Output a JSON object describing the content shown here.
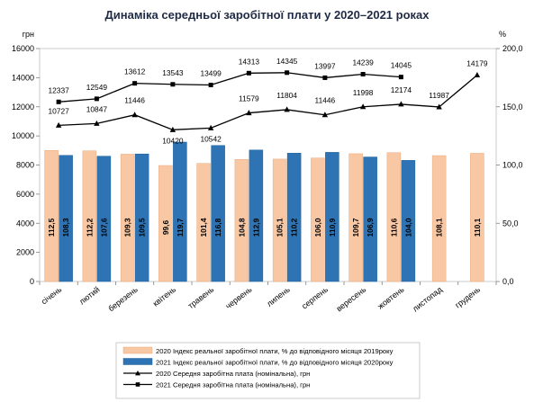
{
  "chart_data": {
    "type": "bar+line",
    "title": "Динаміка середньої заробітної плати у 2020–2021 роках",
    "left_axis": {
      "unit": "грн",
      "min": 0,
      "max": 16000,
      "step": 2000,
      "ticks": [
        "0",
        "2000",
        "4000",
        "6000",
        "8000",
        "10000",
        "12000",
        "14000",
        "16000"
      ]
    },
    "right_axis": {
      "unit": "%",
      "min": 0,
      "max": 200,
      "step": 50,
      "ticks": [
        "0,0",
        "50,0",
        "100,0",
        "150,0",
        "200,0"
      ]
    },
    "categories": [
      "січень",
      "лютий",
      "березень",
      "квітень",
      "травень",
      "червень",
      "липень",
      "серпень",
      "вересень",
      "жовтень",
      "листопад",
      "грудень"
    ],
    "series": [
      {
        "name": "2020 Індекс реальної заробітної плати, % до відповідного місяця 2019року",
        "kind": "bar",
        "axis": "right",
        "color": "#f8c7a4",
        "values": [
          112.5,
          112.2,
          109.3,
          99.6,
          101.4,
          104.8,
          105.1,
          106.0,
          109.7,
          110.6,
          108.1,
          110.1
        ],
        "labels": [
          "112,5",
          "112,2",
          "109,3",
          "99,6",
          "101,4",
          "104,8",
          "105,1",
          "106,0",
          "109,7",
          "110,6",
          "108,1",
          "110,1"
        ]
      },
      {
        "name": "2021 Індекс реальної заробітної плати, % до відповідного місяця 2020року",
        "kind": "bar",
        "axis": "right",
        "color": "#2e74b5",
        "values": [
          108.3,
          107.6,
          109.5,
          119.7,
          116.8,
          112.9,
          110.2,
          110.9,
          106.9,
          104.0,
          null,
          null
        ],
        "labels": [
          "108,3",
          "107,6",
          "109,5",
          "119,7",
          "116,8",
          "112,9",
          "110,2",
          "110,9",
          "106,9",
          "104,0",
          null,
          null
        ]
      },
      {
        "name": "2020 Середня заробітна плата (номінальна), грн",
        "kind": "line",
        "axis": "left",
        "marker": "triangle",
        "values": [
          10727,
          10847,
          11446,
          10420,
          10542,
          11579,
          11804,
          11446,
          11998,
          12174,
          11987,
          14179
        ],
        "labels": [
          "10727",
          "10847",
          "11446",
          "10420",
          "10542",
          "11579",
          "11804",
          "11446",
          "11998",
          "12174",
          "11987",
          "14179"
        ]
      },
      {
        "name": "2021 Середня заробітна плата (номінальна), грн",
        "kind": "line",
        "axis": "left",
        "marker": "square",
        "values": [
          12337,
          12549,
          13612,
          13543,
          13499,
          14313,
          14345,
          13997,
          14239,
          14045,
          null,
          null
        ],
        "labels": [
          "12337",
          "12549",
          "13612",
          "13543",
          "13499",
          "14313",
          "14345",
          "13997",
          "14239",
          "14045",
          null,
          null
        ]
      }
    ]
  }
}
